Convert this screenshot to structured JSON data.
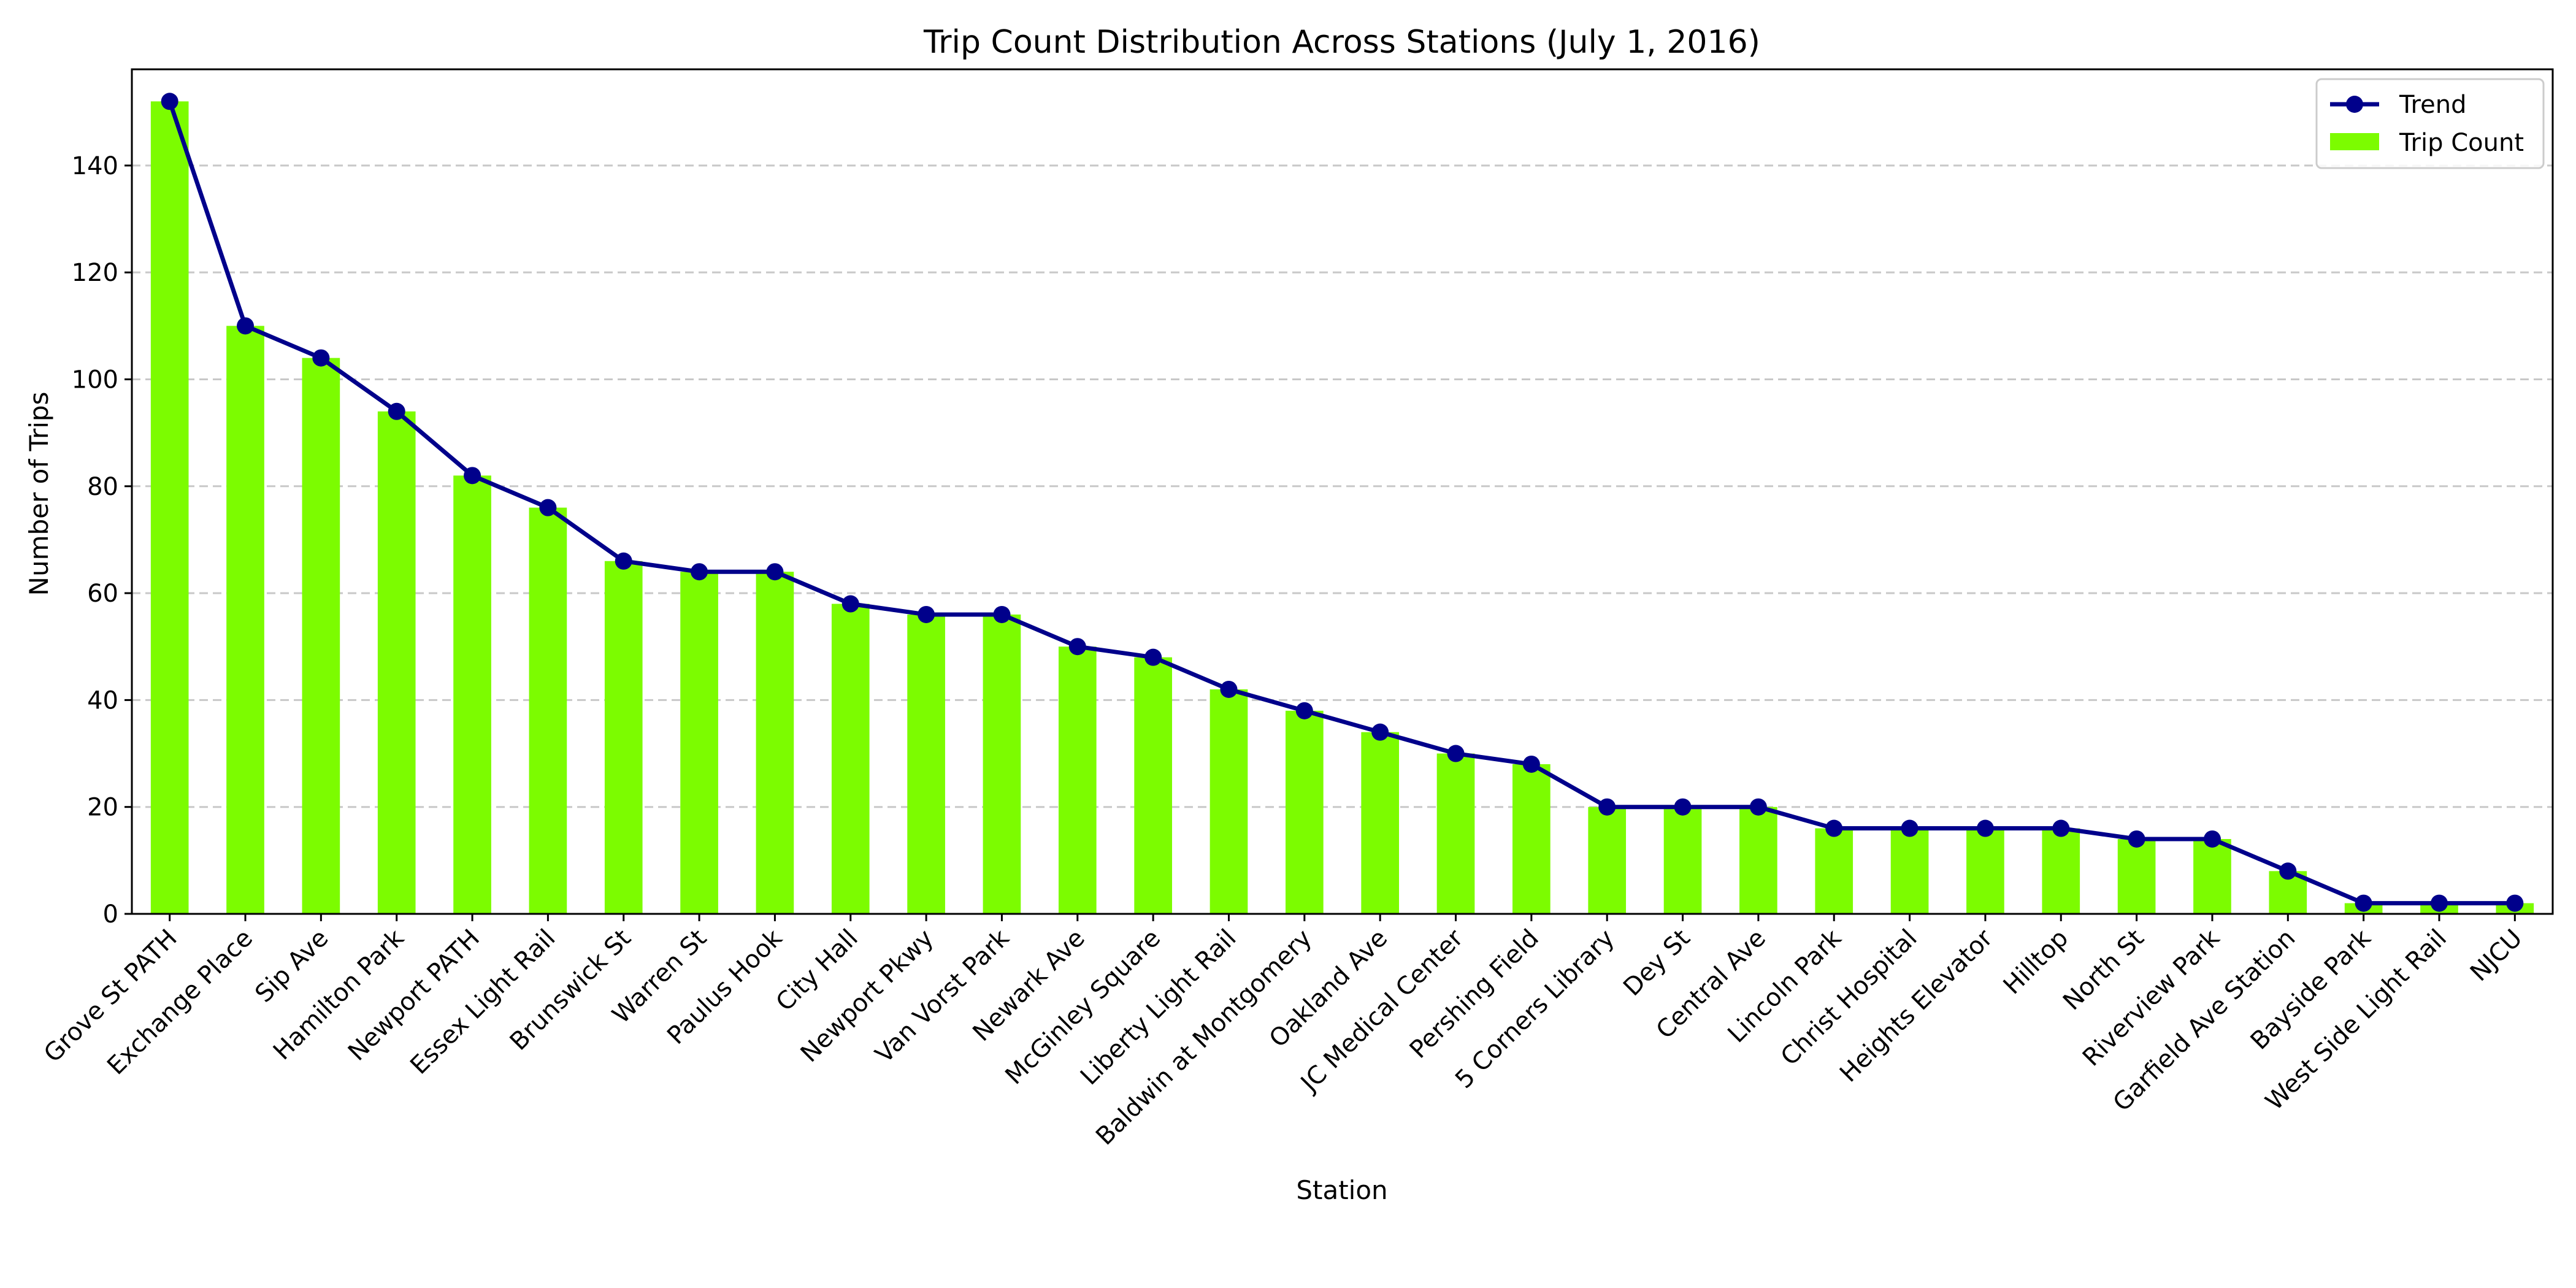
{
  "chart_data": {
    "type": "bar",
    "title": "Trip Count Distribution Across Stations (July 1, 2016)",
    "xlabel": "Station",
    "ylabel": "Number of Trips",
    "ylim": [
      0,
      158
    ],
    "yticks": [
      0,
      20,
      40,
      60,
      80,
      100,
      120,
      140
    ],
    "grid": "horizontal dashed",
    "legend_position": "top-right",
    "categories": [
      "Grove St PATH",
      "Exchange Place",
      "Sip Ave",
      "Hamilton Park",
      "Newport PATH",
      "Essex Light Rail",
      "Brunswick St",
      "Warren St",
      "Paulus Hook",
      "City Hall",
      "Newport Pkwy",
      "Van Vorst Park",
      "Newark Ave",
      "McGinley Square",
      "Liberty Light Rail",
      "Baldwin at Montgomery",
      "Oakland Ave",
      "JC Medical Center",
      "Pershing Field",
      "5 Corners Library",
      "Dey St",
      "Central Ave",
      "Lincoln Park",
      "Christ Hospital",
      "Heights Elevator",
      "Hilltop",
      "North St",
      "Riverview Park",
      "Garfield Ave Station",
      "Bayside Park",
      "West Side Light Rail",
      "NJCU"
    ],
    "series": [
      {
        "name": "Trend",
        "kind": "line",
        "color": "#00008B",
        "values": [
          152,
          110,
          104,
          94,
          82,
          76,
          66,
          64,
          64,
          58,
          56,
          56,
          50,
          48,
          42,
          38,
          34,
          30,
          28,
          20,
          20,
          20,
          16,
          16,
          16,
          16,
          14,
          14,
          8,
          2,
          2,
          2
        ]
      },
      {
        "name": "Trip Count",
        "kind": "bar",
        "color": "#7CFC00",
        "values": [
          152,
          110,
          104,
          94,
          82,
          76,
          66,
          64,
          64,
          58,
          56,
          56,
          50,
          48,
          42,
          38,
          34,
          30,
          28,
          20,
          20,
          20,
          16,
          16,
          16,
          16,
          14,
          14,
          8,
          2,
          2,
          2
        ]
      }
    ]
  }
}
